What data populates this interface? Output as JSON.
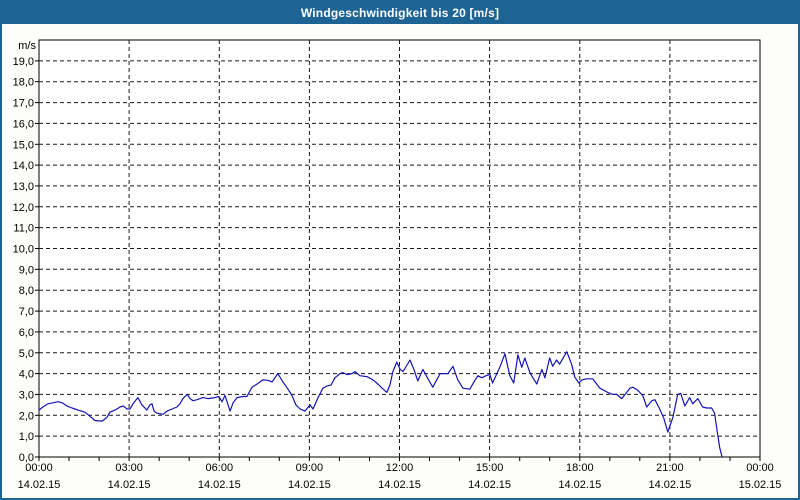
{
  "window": {
    "title": "Windgeschwindigkeit bis 20 [m/s]"
  },
  "colors": {
    "titlebar_bg": "#1d6394",
    "frame": "#1d6394",
    "title_text": "#ffffff",
    "plot_bg": "#ffffff",
    "grid": "#1a1a1a",
    "axis": "#000000",
    "line": "#1414b4"
  },
  "chart_data": {
    "type": "line",
    "title": "Windgeschwindigkeit bis 20 [m/s]",
    "ylabel": "m/s",
    "xlabel": "",
    "ylim": [
      0,
      20
    ],
    "xlim_hours": [
      0,
      24
    ],
    "grid": "dashed horizontal every 1 m/s, dashed vertical every 3 h, hourly minor ticks on x-axis",
    "legend_position": "none",
    "y_unit_label": "m/s",
    "y_tick_values": [
      0,
      1,
      2,
      3,
      4,
      5,
      6,
      7,
      8,
      9,
      10,
      11,
      12,
      13,
      14,
      15,
      16,
      17,
      18,
      19
    ],
    "y_tick_labels": [
      "0,0",
      "1,0",
      "2,0",
      "3,0",
      "4,0",
      "5,0",
      "6,0",
      "7,0",
      "8,0",
      "9,0",
      "10,0",
      "11,0",
      "12,0",
      "13,0",
      "14,0",
      "15,0",
      "16,0",
      "17,0",
      "18,0",
      "19,0"
    ],
    "x_ticks": [
      {
        "hour": 0,
        "time": "00:00",
        "date": "14.02.15"
      },
      {
        "hour": 3,
        "time": "03:00",
        "date": "14.02.15"
      },
      {
        "hour": 6,
        "time": "06:00",
        "date": "14.02.15"
      },
      {
        "hour": 9,
        "time": "09:00",
        "date": "14.02.15"
      },
      {
        "hour": 12,
        "time": "12:00",
        "date": "14.02.15"
      },
      {
        "hour": 15,
        "time": "15:00",
        "date": "14.02.15"
      },
      {
        "hour": 18,
        "time": "18:00",
        "date": "14.02.15"
      },
      {
        "hour": 21,
        "time": "21:00",
        "date": "14.02.15"
      },
      {
        "hour": 24,
        "time": "00:00",
        "date": "15.02.15"
      }
    ],
    "series": [
      {
        "name": "Windgeschwindigkeit",
        "color": "#1414b4",
        "points_hours_mps": [
          [
            0.0,
            2.25
          ],
          [
            0.13,
            2.4
          ],
          [
            0.3,
            2.55
          ],
          [
            0.47,
            2.6
          ],
          [
            0.63,
            2.65
          ],
          [
            0.77,
            2.6
          ],
          [
            0.93,
            2.45
          ],
          [
            1.1,
            2.35
          ],
          [
            1.3,
            2.25
          ],
          [
            1.53,
            2.15
          ],
          [
            1.7,
            1.95
          ],
          [
            1.86,
            1.75
          ],
          [
            2.1,
            1.72
          ],
          [
            2.26,
            1.9
          ],
          [
            2.36,
            2.15
          ],
          [
            2.53,
            2.25
          ],
          [
            2.7,
            2.4
          ],
          [
            2.8,
            2.45
          ],
          [
            2.93,
            2.3
          ],
          [
            3.03,
            2.3
          ],
          [
            3.13,
            2.55
          ],
          [
            3.29,
            2.85
          ],
          [
            3.43,
            2.5
          ],
          [
            3.53,
            2.35
          ],
          [
            3.59,
            2.25
          ],
          [
            3.69,
            2.5
          ],
          [
            3.76,
            2.55
          ],
          [
            3.83,
            2.2
          ],
          [
            3.93,
            2.1
          ],
          [
            4.13,
            2.05
          ],
          [
            4.26,
            2.2
          ],
          [
            4.43,
            2.3
          ],
          [
            4.59,
            2.4
          ],
          [
            4.69,
            2.55
          ],
          [
            4.79,
            2.8
          ],
          [
            4.93,
            3.0
          ],
          [
            5.03,
            2.8
          ],
          [
            5.13,
            2.7
          ],
          [
            5.26,
            2.75
          ],
          [
            5.46,
            2.85
          ],
          [
            5.62,
            2.8
          ],
          [
            5.86,
            2.85
          ],
          [
            5.99,
            2.9
          ],
          [
            6.09,
            2.65
          ],
          [
            6.19,
            2.95
          ],
          [
            6.36,
            2.2
          ],
          [
            6.46,
            2.6
          ],
          [
            6.59,
            2.85
          ],
          [
            6.79,
            2.9
          ],
          [
            6.92,
            2.9
          ],
          [
            7.09,
            3.35
          ],
          [
            7.26,
            3.5
          ],
          [
            7.45,
            3.7
          ],
          [
            7.62,
            3.68
          ],
          [
            7.76,
            3.6
          ],
          [
            7.95,
            4.0
          ],
          [
            8.12,
            3.6
          ],
          [
            8.29,
            3.25
          ],
          [
            8.42,
            2.95
          ],
          [
            8.55,
            2.5
          ],
          [
            8.69,
            2.3
          ],
          [
            8.85,
            2.2
          ],
          [
            9.02,
            2.5
          ],
          [
            9.12,
            2.3
          ],
          [
            9.29,
            2.85
          ],
          [
            9.45,
            3.3
          ],
          [
            9.58,
            3.4
          ],
          [
            9.72,
            3.45
          ],
          [
            9.85,
            3.8
          ],
          [
            10.02,
            4.0
          ],
          [
            10.12,
            4.05
          ],
          [
            10.25,
            3.95
          ],
          [
            10.42,
            4.0
          ],
          [
            10.52,
            4.1
          ],
          [
            10.68,
            3.9
          ],
          [
            10.92,
            3.85
          ],
          [
            11.12,
            3.7
          ],
          [
            11.28,
            3.5
          ],
          [
            11.42,
            3.3
          ],
          [
            11.58,
            3.1
          ],
          [
            11.68,
            3.45
          ],
          [
            11.78,
            4.1
          ],
          [
            11.91,
            4.55
          ],
          [
            12.02,
            4.2
          ],
          [
            12.12,
            4.1
          ],
          [
            12.35,
            4.65
          ],
          [
            12.48,
            4.2
          ],
          [
            12.61,
            3.65
          ],
          [
            12.78,
            4.2
          ],
          [
            12.95,
            3.75
          ],
          [
            13.11,
            3.35
          ],
          [
            13.35,
            4.0
          ],
          [
            13.61,
            4.0
          ],
          [
            13.78,
            4.35
          ],
          [
            13.94,
            3.7
          ],
          [
            14.11,
            3.3
          ],
          [
            14.34,
            3.25
          ],
          [
            14.48,
            3.6
          ],
          [
            14.61,
            3.9
          ],
          [
            14.74,
            3.8
          ],
          [
            14.88,
            3.9
          ],
          [
            15.01,
            3.95
          ],
          [
            15.1,
            3.55
          ],
          [
            15.34,
            4.3
          ],
          [
            15.51,
            4.95
          ],
          [
            15.67,
            3.9
          ],
          [
            15.8,
            3.55
          ],
          [
            15.94,
            4.9
          ],
          [
            16.07,
            4.3
          ],
          [
            16.17,
            4.75
          ],
          [
            16.34,
            4.05
          ],
          [
            16.44,
            3.8
          ],
          [
            16.57,
            3.5
          ],
          [
            16.74,
            4.2
          ],
          [
            16.84,
            3.8
          ],
          [
            17.0,
            4.75
          ],
          [
            17.1,
            4.35
          ],
          [
            17.23,
            4.65
          ],
          [
            17.33,
            4.45
          ],
          [
            17.57,
            5.05
          ],
          [
            17.73,
            4.45
          ],
          [
            17.83,
            3.85
          ],
          [
            17.97,
            3.55
          ],
          [
            18.07,
            3.7
          ],
          [
            18.23,
            3.75
          ],
          [
            18.43,
            3.75
          ],
          [
            18.67,
            3.3
          ],
          [
            18.93,
            3.1
          ],
          [
            19.1,
            3.0
          ],
          [
            19.23,
            3.0
          ],
          [
            19.4,
            2.8
          ],
          [
            19.67,
            3.3
          ],
          [
            19.77,
            3.35
          ],
          [
            19.93,
            3.2
          ],
          [
            20.1,
            2.95
          ],
          [
            20.23,
            2.4
          ],
          [
            20.4,
            2.7
          ],
          [
            20.5,
            2.75
          ],
          [
            20.66,
            2.3
          ],
          [
            20.8,
            1.85
          ],
          [
            20.93,
            1.2
          ],
          [
            21.1,
            1.9
          ],
          [
            21.26,
            3.0
          ],
          [
            21.36,
            3.05
          ],
          [
            21.5,
            2.45
          ],
          [
            21.66,
            2.85
          ],
          [
            21.76,
            2.55
          ],
          [
            21.93,
            2.8
          ],
          [
            22.09,
            2.4
          ],
          [
            22.23,
            2.35
          ],
          [
            22.39,
            2.35
          ],
          [
            22.49,
            2.1
          ],
          [
            22.59,
            1.1
          ],
          [
            22.66,
            0.45
          ],
          [
            22.73,
            0.05
          ]
        ]
      }
    ]
  }
}
